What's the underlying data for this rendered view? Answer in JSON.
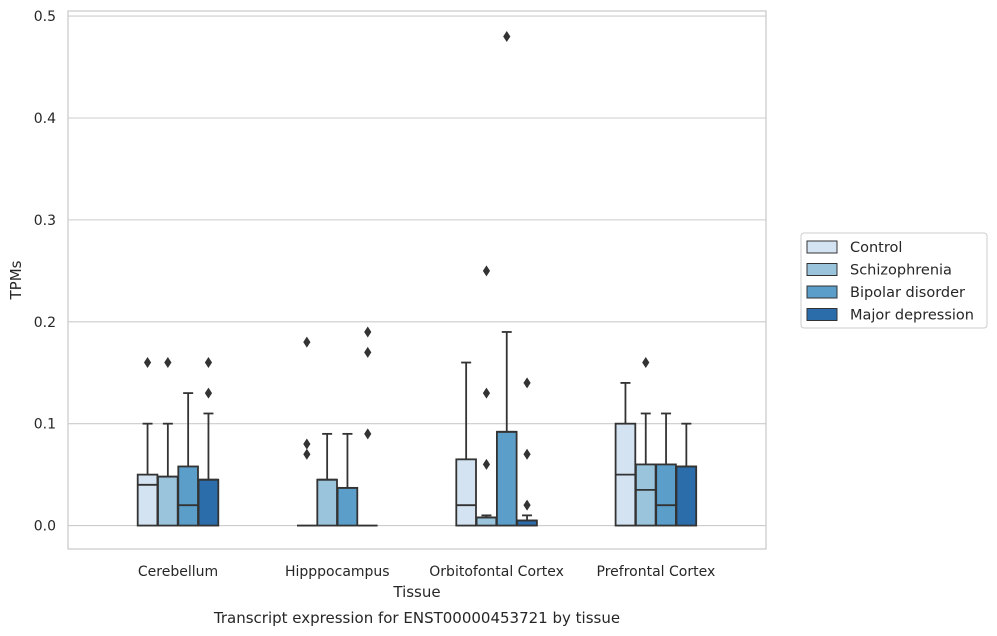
{
  "chart_data": {
    "type": "box",
    "title": "Transcript expression for ENST00000453721 by tissue",
    "xlabel": "Tissue",
    "ylabel": "TPMs",
    "ylim": [
      -0.023,
      0.505
    ],
    "yticks": [
      "0.0",
      "0.1",
      "0.2",
      "0.3",
      "0.4",
      "0.5"
    ],
    "ytick_values": [
      0,
      0.1,
      0.2,
      0.3,
      0.4,
      0.5
    ],
    "categories": [
      "Cerebellum",
      "Hipppocampus",
      "Orbitofontal Cortex",
      "Prefrontal Cortex"
    ],
    "grid": true,
    "legend_position": "right",
    "series": [
      {
        "name": "Control",
        "color": "#d4e3f1",
        "boxes": [
          {
            "q1": 0,
            "median": 0.04,
            "q3": 0.05,
            "whisker_low": 0,
            "whisker_high": 0.1,
            "outliers": [
              0.16
            ]
          },
          {
            "q1": 0,
            "median": 0,
            "q3": 0,
            "whisker_low": 0,
            "whisker_high": 0,
            "outliers": [
              0.07,
              0.08,
              0.18
            ]
          },
          {
            "q1": 0,
            "median": 0.02,
            "q3": 0.065,
            "whisker_low": 0,
            "whisker_high": 0.16,
            "outliers": []
          },
          {
            "q1": 0,
            "median": 0.05,
            "q3": 0.1,
            "whisker_low": 0,
            "whisker_high": 0.14,
            "outliers": []
          }
        ]
      },
      {
        "name": "Schizophrenia",
        "color": "#9ac3dc",
        "boxes": [
          {
            "q1": 0,
            "median": 0.048,
            "q3": 0.048,
            "whisker_low": 0,
            "whisker_high": 0.1,
            "outliers": [
              0.16
            ]
          },
          {
            "q1": 0,
            "median": 0.045,
            "q3": 0.045,
            "whisker_low": 0,
            "whisker_high": 0.09,
            "outliers": []
          },
          {
            "q1": 0,
            "median": 0.008,
            "q3": 0.008,
            "whisker_low": 0,
            "whisker_high": 0.01,
            "outliers": [
              0.06,
              0.13,
              0.25
            ]
          },
          {
            "q1": 0,
            "median": 0.035,
            "q3": 0.06,
            "whisker_low": 0,
            "whisker_high": 0.11,
            "outliers": [
              0.16
            ]
          }
        ]
      },
      {
        "name": "Bipolar disorder",
        "color": "#5a9ec9",
        "boxes": [
          {
            "q1": 0,
            "median": 0.02,
            "q3": 0.058,
            "whisker_low": 0,
            "whisker_high": 0.13,
            "outliers": []
          },
          {
            "q1": 0,
            "median": 0.037,
            "q3": 0.037,
            "whisker_low": 0,
            "whisker_high": 0.09,
            "outliers": []
          },
          {
            "q1": 0,
            "median": 0.092,
            "q3": 0.092,
            "whisker_low": 0,
            "whisker_high": 0.19,
            "outliers": [
              0.48
            ]
          },
          {
            "q1": 0,
            "median": 0.02,
            "q3": 0.06,
            "whisker_low": 0,
            "whisker_high": 0.11,
            "outliers": []
          }
        ]
      },
      {
        "name": "Major depression",
        "color": "#2b6daa",
        "boxes": [
          {
            "q1": 0,
            "median": 0.045,
            "q3": 0.045,
            "whisker_low": 0,
            "whisker_high": 0.11,
            "outliers": [
              0.13,
              0.16
            ]
          },
          {
            "q1": 0,
            "median": 0,
            "q3": 0,
            "whisker_low": 0,
            "whisker_high": 0,
            "outliers": [
              0.09,
              0.17,
              0.19
            ]
          },
          {
            "q1": 0,
            "median": 0.005,
            "q3": 0.005,
            "whisker_low": 0,
            "whisker_high": 0.01,
            "outliers": [
              0.02,
              0.07,
              0.14
            ]
          },
          {
            "q1": 0,
            "median": 0.058,
            "q3": 0.058,
            "whisker_low": 0,
            "whisker_high": 0.1,
            "outliers": []
          }
        ]
      }
    ]
  }
}
